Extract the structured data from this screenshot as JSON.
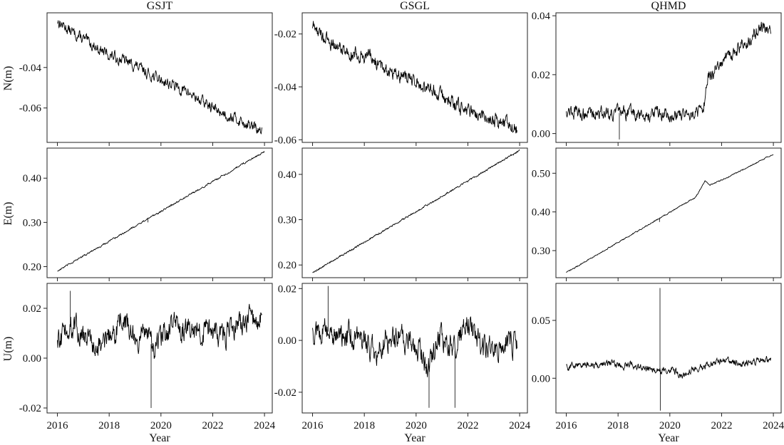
{
  "figure": {
    "xlabel": "Year",
    "x_tick_labels": [
      "2016",
      "2018",
      "2020",
      "2022",
      "2024"
    ],
    "column_titles": [
      "GSJT",
      "GSGL",
      "QHMD"
    ],
    "row_labels": [
      "N(m)",
      "E(m)",
      "U(m)"
    ]
  },
  "chart_data": [
    {
      "type": "line",
      "station": "GSJT",
      "component": "N",
      "title": "GSJT",
      "ylabel": "N(m)",
      "xlabel": "",
      "xlim": [
        2015.6,
        2024.3
      ],
      "ylim": [
        -0.077,
        -0.013
      ],
      "yticks": [
        -0.04,
        -0.06
      ],
      "ytick_labels": [
        "-0.04",
        "-0.06"
      ],
      "grid": false,
      "x": [
        2016.0,
        2016.5,
        2017.0,
        2017.5,
        2018.0,
        2018.5,
        2019.0,
        2019.5,
        2020.0,
        2020.5,
        2021.0,
        2021.5,
        2022.0,
        2022.5,
        2023.0,
        2023.5,
        2023.9
      ],
      "y": [
        -0.017,
        -0.022,
        -0.026,
        -0.03,
        -0.034,
        -0.036,
        -0.039,
        -0.043,
        -0.046,
        -0.049,
        -0.052,
        -0.056,
        -0.06,
        -0.063,
        -0.066,
        -0.069,
        -0.072
      ],
      "noise": 0.0022,
      "spikes": []
    },
    {
      "type": "line",
      "station": "GSGL",
      "component": "N",
      "title": "GSGL",
      "ylabel": "",
      "xlabel": "",
      "xlim": [
        2015.6,
        2024.3
      ],
      "ylim": [
        -0.061,
        -0.012
      ],
      "yticks": [
        -0.02,
        -0.04,
        -0.06
      ],
      "ytick_labels": [
        "-0.02",
        "-0.04",
        "-0.06"
      ],
      "grid": false,
      "x": [
        2016.0,
        2016.5,
        2017.0,
        2017.5,
        2018.0,
        2018.5,
        2019.0,
        2019.5,
        2020.0,
        2020.5,
        2021.0,
        2021.5,
        2022.0,
        2022.5,
        2023.0,
        2023.5,
        2023.9
      ],
      "y": [
        -0.017,
        -0.022,
        -0.025,
        -0.027,
        -0.028,
        -0.031,
        -0.034,
        -0.036,
        -0.038,
        -0.041,
        -0.043,
        -0.047,
        -0.049,
        -0.051,
        -0.052,
        -0.054,
        -0.056
      ],
      "noise": 0.0022,
      "spikes": []
    },
    {
      "type": "line",
      "station": "QHMD",
      "component": "N",
      "title": "QHMD",
      "ylabel": "",
      "xlabel": "",
      "xlim": [
        2015.6,
        2024.3
      ],
      "ylim": [
        -0.003,
        0.041
      ],
      "yticks": [
        0.04,
        0.02,
        0.0
      ],
      "ytick_labels": [
        "0.04",
        "0.02",
        "0.00"
      ],
      "grid": false,
      "x": [
        2016.0,
        2016.5,
        2017.0,
        2017.5,
        2018.0,
        2018.5,
        2019.0,
        2019.5,
        2020.0,
        2020.5,
        2021.0,
        2021.3,
        2021.45,
        2021.8,
        2022.0,
        2022.5,
        2023.0,
        2023.5,
        2023.9
      ],
      "y": [
        0.008,
        0.007,
        0.007,
        0.007,
        0.007,
        0.007,
        0.006,
        0.007,
        0.006,
        0.007,
        0.007,
        0.008,
        0.019,
        0.022,
        0.024,
        0.028,
        0.031,
        0.036,
        0.035
      ],
      "noise": 0.0018,
      "spikes": [
        [
          2018.05,
          -0.002
        ]
      ]
    },
    {
      "type": "line",
      "station": "GSJT",
      "component": "E",
      "title": "",
      "ylabel": "E(m)",
      "xlabel": "",
      "xlim": [
        2015.6,
        2024.3
      ],
      "ylim": [
        0.175,
        0.468
      ],
      "yticks": [
        0.2,
        0.3,
        0.4
      ],
      "ytick_labels": [
        "0.20",
        "0.30",
        "0.40"
      ],
      "grid": false,
      "x": [
        2016.0,
        2024.0
      ],
      "y": [
        0.19,
        0.46
      ],
      "noise": 0.0015,
      "spikes": [
        [
          2019.5,
          0.3
        ]
      ]
    },
    {
      "type": "line",
      "station": "GSGL",
      "component": "E",
      "title": "",
      "ylabel": "",
      "xlabel": "",
      "xlim": [
        2015.6,
        2024.3
      ],
      "ylim": [
        0.172,
        0.458
      ],
      "yticks": [
        0.2,
        0.3,
        0.4
      ],
      "ytick_labels": [
        "0.20",
        "0.30",
        "0.40"
      ],
      "grid": false,
      "x": [
        2016.0,
        2024.0
      ],
      "y": [
        0.183,
        0.453
      ],
      "noise": 0.0015,
      "spikes": []
    },
    {
      "type": "line",
      "station": "QHMD",
      "component": "E",
      "title": "",
      "ylabel": "",
      "xlabel": "",
      "xlim": [
        2015.6,
        2024.3
      ],
      "ylim": [
        0.23,
        0.565
      ],
      "yticks": [
        0.3,
        0.4,
        0.5
      ],
      "ytick_labels": [
        "0.30",
        "0.40",
        "0.50"
      ],
      "grid": false,
      "x": [
        2016.0,
        2017.0,
        2018.0,
        2019.0,
        2020.0,
        2021.0,
        2021.35,
        2021.55,
        2022.0,
        2023.0,
        2024.0
      ],
      "y": [
        0.243,
        0.282,
        0.321,
        0.36,
        0.399,
        0.438,
        0.48,
        0.47,
        0.482,
        0.515,
        0.55
      ],
      "noise": 0.0012,
      "spikes": [
        [
          2019.6,
          0.374
        ]
      ]
    },
    {
      "type": "line",
      "station": "GSJT",
      "component": "U",
      "title": "",
      "ylabel": "U(m)",
      "xlabel": "Year",
      "xlim": [
        2015.6,
        2024.3
      ],
      "ylim": [
        -0.022,
        0.03
      ],
      "yticks": [
        0.02,
        0.0,
        -0.02
      ],
      "ytick_labels": [
        "0.02",
        "0.00",
        "-0.02"
      ],
      "grid": false,
      "x": [
        2016.0,
        2016.5,
        2017.0,
        2017.5,
        2018.0,
        2018.5,
        2019.0,
        2019.5,
        2019.7,
        2020.0,
        2020.5,
        2021.0,
        2021.5,
        2022.0,
        2022.5,
        2023.0,
        2023.5,
        2023.9
      ],
      "y": [
        0.006,
        0.013,
        0.009,
        0.004,
        0.008,
        0.016,
        0.008,
        0.011,
        0.002,
        0.009,
        0.013,
        0.012,
        0.01,
        0.011,
        0.009,
        0.013,
        0.016,
        0.015
      ],
      "noise": 0.004,
      "spikes": [
        [
          2019.62,
          -0.02
        ],
        [
          2016.5,
          0.027
        ]
      ]
    },
    {
      "type": "line",
      "station": "GSGL",
      "component": "U",
      "title": "",
      "ylabel": "",
      "xlabel": "Year",
      "xlim": [
        2015.6,
        2024.3
      ],
      "ylim": [
        -0.028,
        0.022
      ],
      "yticks": [
        0.02,
        0.0,
        -0.02
      ],
      "ytick_labels": [
        "0.02",
        "0.00",
        "-0.02"
      ],
      "grid": false,
      "x": [
        2016.0,
        2016.5,
        2017.0,
        2017.5,
        2018.0,
        2018.5,
        2019.0,
        2019.5,
        2020.0,
        2020.5,
        2021.0,
        2021.5,
        2022.0,
        2022.5,
        2023.0,
        2023.5,
        2023.9
      ],
      "y": [
        0.003,
        0.004,
        0.001,
        0.003,
        0.0,
        -0.005,
        0.002,
        0.001,
        -0.001,
        -0.01,
        0.002,
        -0.004,
        0.008,
        -0.002,
        -0.003,
        0.001,
        -0.003
      ],
      "noise": 0.004,
      "spikes": [
        [
          2020.5,
          -0.026
        ],
        [
          2021.5,
          -0.026
        ],
        [
          2016.6,
          0.021
        ]
      ]
    },
    {
      "type": "line",
      "station": "QHMD",
      "component": "U",
      "title": "",
      "ylabel": "",
      "xlabel": "Year",
      "xlim": [
        2015.6,
        2024.3
      ],
      "ylim": [
        -0.03,
        0.082
      ],
      "yticks": [
        0.05,
        0.0
      ],
      "ytick_labels": [
        "0.05",
        "0.00"
      ],
      "grid": false,
      "x": [
        2016.0,
        2016.5,
        2017.0,
        2017.5,
        2018.0,
        2018.5,
        2019.0,
        2019.5,
        2020.0,
        2020.5,
        2021.0,
        2021.5,
        2022.0,
        2022.5,
        2023.0,
        2023.5,
        2023.9
      ],
      "y": [
        0.01,
        0.012,
        0.011,
        0.013,
        0.011,
        0.012,
        0.009,
        0.007,
        0.008,
        0.002,
        0.009,
        0.012,
        0.016,
        0.013,
        0.013,
        0.016,
        0.016
      ],
      "noise": 0.0025,
      "spikes": [
        [
          2019.62,
          0.078
        ],
        [
          2019.63,
          -0.028
        ]
      ]
    }
  ]
}
